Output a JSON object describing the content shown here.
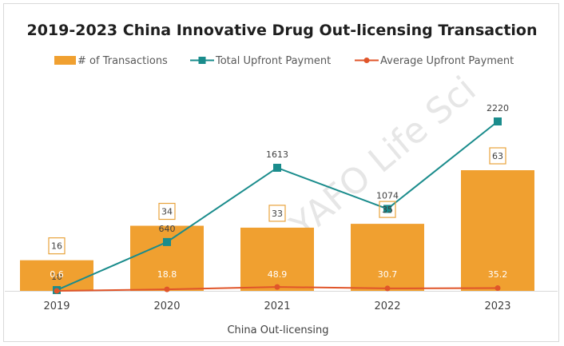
{
  "chart_data": {
    "type": "bar",
    "title": "2019-2023  China Innovative Drug Out-licensing Transaction",
    "xlabel": "China Out-licensing",
    "ylabel": "",
    "categories": [
      "2019",
      "2020",
      "2021",
      "2022",
      "2023"
    ],
    "legend_position": "top",
    "grid": false,
    "watermark": "YAFO Life Sci",
    "series": [
      {
        "name": "# of Transactions",
        "type": "bar",
        "color": "#F0A030",
        "values": [
          16,
          34,
          33,
          35,
          63
        ]
      },
      {
        "name": "Total Upfront Payment",
        "type": "line",
        "marker": "square",
        "color": "#1A8C8C",
        "values": [
          10,
          640,
          1613,
          1074,
          2220
        ]
      },
      {
        "name": "Average Upfront Payment",
        "type": "line",
        "marker": "circle",
        "color": "#E0552A",
        "values": [
          0.6,
          18.8,
          48.9,
          30.7,
          35.2
        ]
      }
    ]
  }
}
